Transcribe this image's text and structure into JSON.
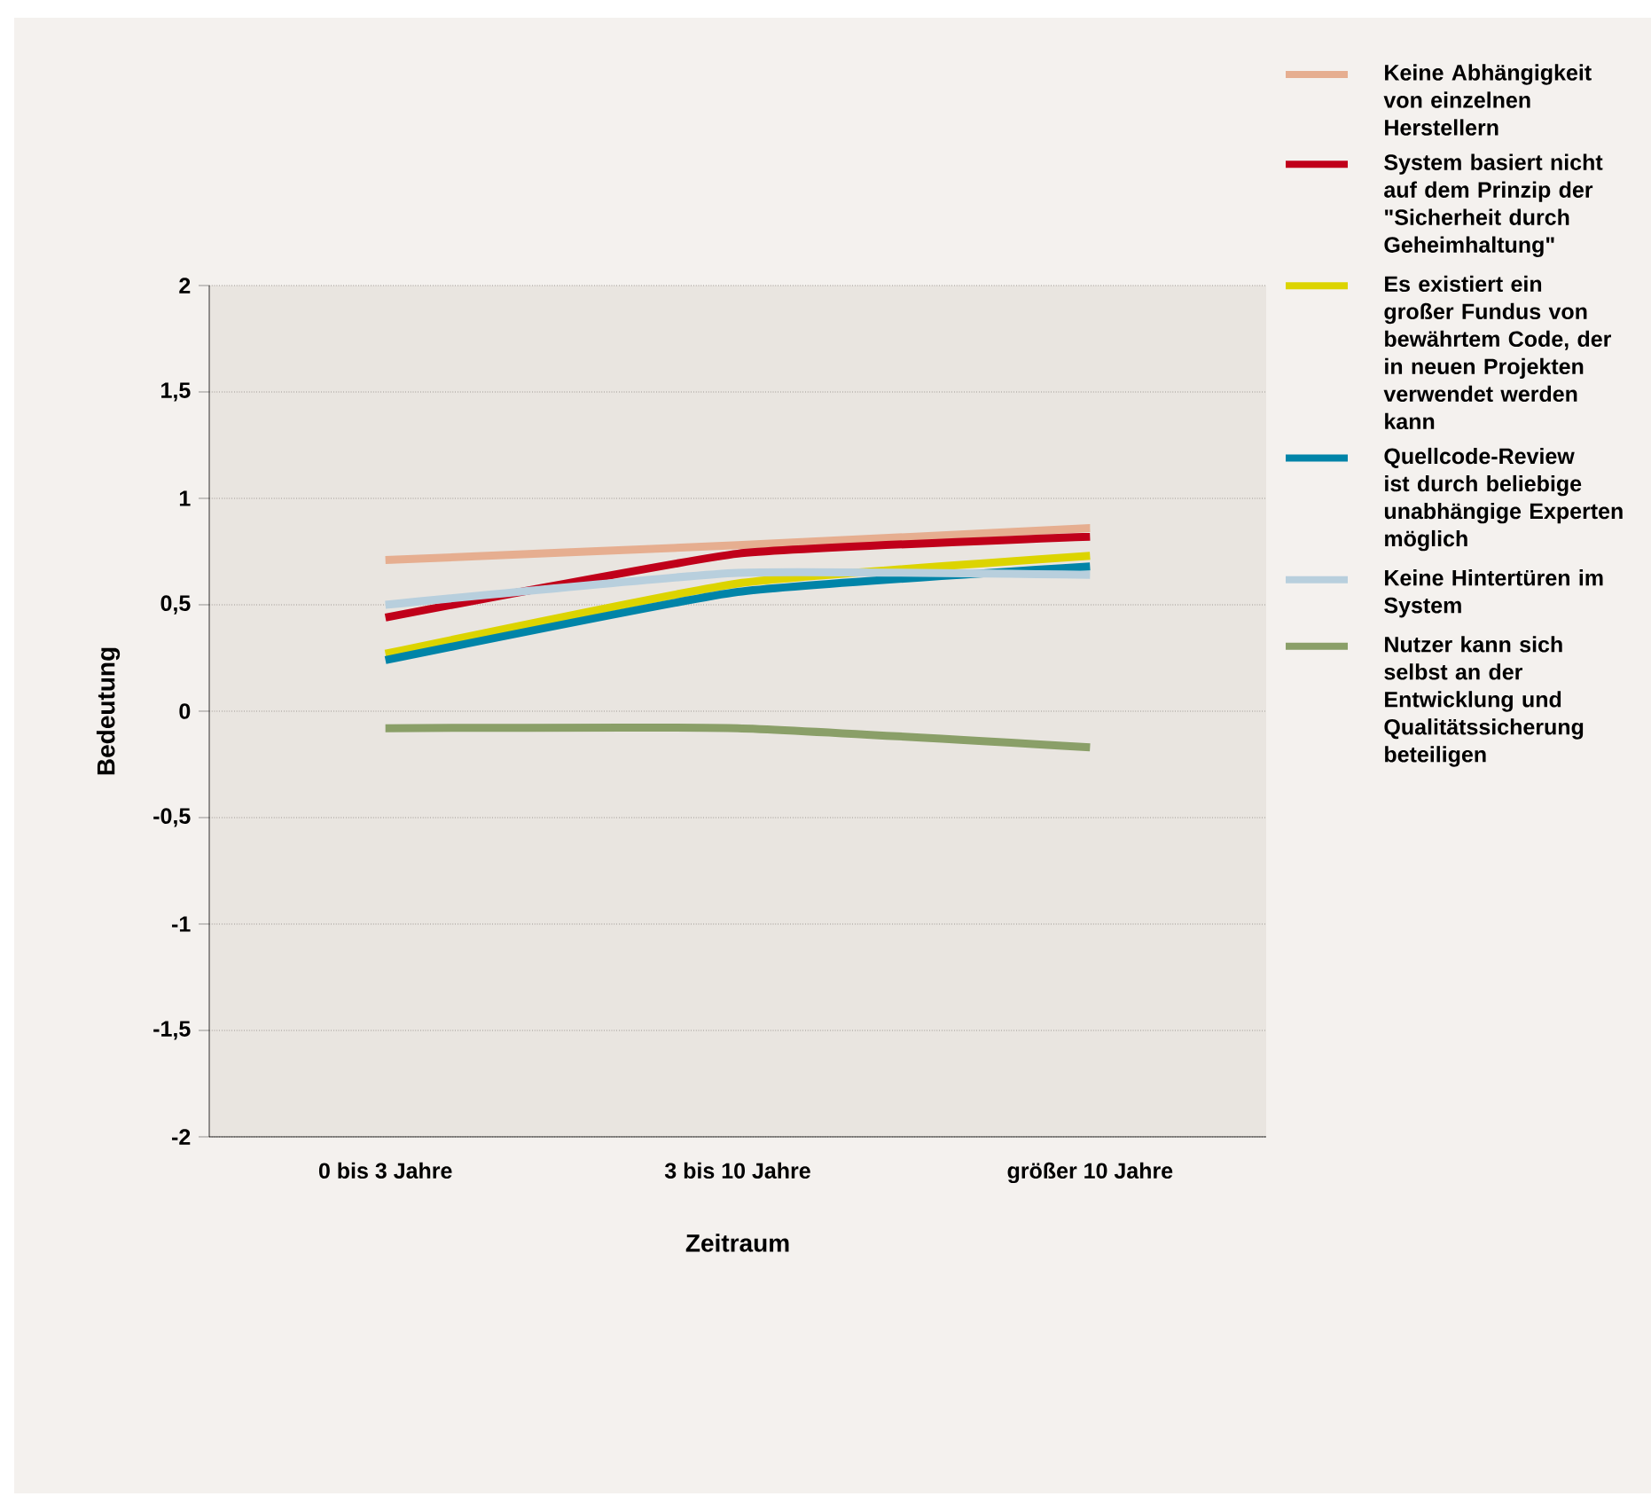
{
  "chart_data": {
    "type": "line",
    "xlabel": "Zeitraum",
    "ylabel": "Bedeutung",
    "categories": [
      "0 bis 3 Jahre",
      "3 bis 10 Jahre",
      "größer 10 Jahre"
    ],
    "ylim": [
      -2,
      2
    ],
    "yticks": [
      {
        "value": -2,
        "label": "-2"
      },
      {
        "value": -1.5,
        "label": "-1,5"
      },
      {
        "value": -1,
        "label": "-1"
      },
      {
        "value": -0.5,
        "label": "-0,5"
      },
      {
        "value": 0,
        "label": "0"
      },
      {
        "value": 0.5,
        "label": "0,5"
      },
      {
        "value": 1,
        "label": "1"
      },
      {
        "value": 1.5,
        "label": "1,5"
      },
      {
        "value": 2,
        "label": "2"
      }
    ],
    "grid": "y",
    "legend": "right",
    "marker": "none",
    "line_style": "solid",
    "series": [
      {
        "name": "Keine Abhängigkeit von einzelnen Herstellern",
        "color": "#e6ae90",
        "values": [
          0.71,
          0.78,
          0.86
        ]
      },
      {
        "name": "System basiert nicht auf dem Prinzip der \"Sicherheit durch Geheimhaltung\"",
        "color": "#c0001a",
        "values": [
          0.44,
          0.74,
          0.82
        ]
      },
      {
        "name": "Es existiert ein großer Fundus von bewährtem Code, der in neuen Projekten verwendet werden kann",
        "color": "#dcd400",
        "values": [
          0.27,
          0.6,
          0.73
        ]
      },
      {
        "name": "Quellcode-Review ist durch beliebige unabhängige Experten möglich",
        "color": "#0084a8",
        "values": [
          0.24,
          0.56,
          0.68
        ]
      },
      {
        "name": "Keine Hintertüren im System",
        "color": "#b8cfdd",
        "values": [
          0.5,
          0.65,
          0.64
        ]
      },
      {
        "name": "Nutzer kann sich selbst an der Entwicklung und Qualitätssicherung beteiligen",
        "color": "#8a9f68",
        "values": [
          -0.08,
          -0.08,
          -0.17
        ]
      }
    ]
  }
}
